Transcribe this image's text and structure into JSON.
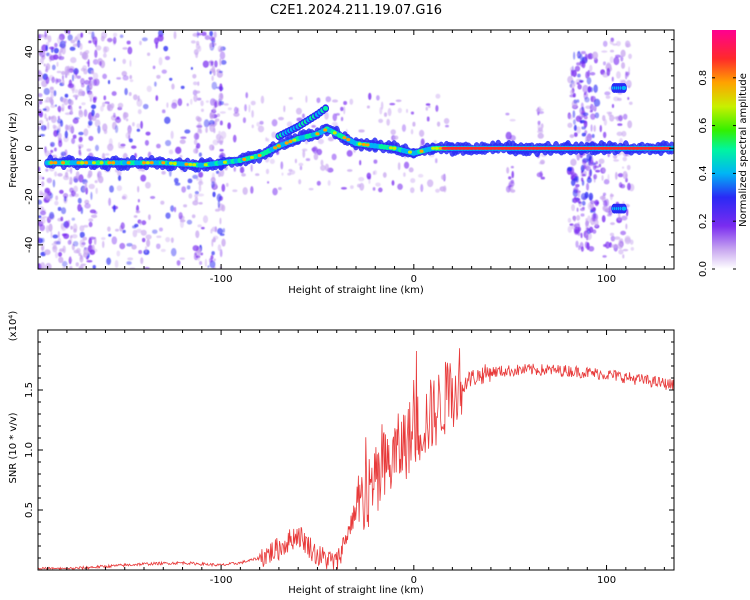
{
  "title": "C2E1.2024.211.19.07.G16",
  "chart_data": [
    {
      "type": "heatmap",
      "xlabel": "Height of straight line (km)",
      "ylabel": "Frequency (Hz)",
      "xlim": [
        -195,
        135
      ],
      "ylim": [
        -50,
        49
      ],
      "x_ticks": [
        -100,
        0,
        100
      ],
      "y_ticks": [
        -40,
        -20,
        0,
        20,
        40
      ],
      "colorbar": {
        "label": "Normalized spectral amplitude",
        "range": [
          0,
          1
        ],
        "ticks": [
          "0.0",
          "0.2",
          "0.4",
          "0.6",
          "0.8"
        ],
        "colors": [
          "#ffffff",
          "#c9a8f0",
          "#7a2cf0",
          "#2a2af5",
          "#00b5f5",
          "#00f5a0",
          "#33f000",
          "#c8f000",
          "#ffa200",
          "#ff2a2a",
          "#ff0090"
        ]
      },
      "series": [
        {
          "points": [
            [
              -190,
              -6
            ],
            [
              -170,
              -6
            ],
            [
              -150,
              -6
            ],
            [
              -130,
              -6
            ],
            [
              -110,
              -7
            ],
            [
              -100,
              -6
            ],
            [
              -90,
              -5
            ],
            [
              -80,
              -3
            ],
            [
              -70,
              1
            ],
            [
              -60,
              4
            ],
            [
              -50,
              6
            ],
            [
              -45,
              8
            ],
            [
              -40,
              6
            ],
            [
              -30,
              2
            ],
            [
              -20,
              1
            ],
            [
              -10,
              0
            ],
            [
              0,
              -2
            ],
            [
              10,
              0
            ],
            [
              20,
              0
            ],
            [
              50,
              0
            ],
            [
              80,
              0
            ],
            [
              96,
              0
            ],
            [
              110,
              0
            ],
            [
              134,
              0
            ]
          ]
        },
        {
          "points": [
            [
              -70,
              5
            ],
            [
              -60,
              9
            ],
            [
              -50,
              14
            ],
            [
              -45,
              17
            ]
          ]
        },
        {
          "points": [
            [
              104,
              25
            ],
            [
              110,
              25
            ]
          ]
        },
        {
          "points": [
            [
              104,
              -25
            ],
            [
              110,
              -25
            ]
          ]
        }
      ]
    },
    {
      "type": "line",
      "xlabel": "Height of straight line (km)",
      "ylabel": "SNR (10 * v/v)",
      "y_multiplier": "(x10⁴)",
      "xlim": [
        -195,
        135
      ],
      "ylim": [
        0,
        2.0
      ],
      "x_ticks": [
        -100,
        0,
        100
      ],
      "y_ticks": [
        "0.5",
        "1.0",
        "1.5"
      ],
      "color": "#e83a3a",
      "x": [
        -195,
        -180,
        -160,
        -140,
        -120,
        -100,
        -90,
        -80,
        -70,
        -60,
        -50,
        -40,
        -30,
        -20,
        -10,
        0,
        10,
        20,
        30,
        40,
        60,
        80,
        100,
        120,
        135
      ],
      "y": [
        0.01,
        0.01,
        0.03,
        0.05,
        0.06,
        0.04,
        0.06,
        0.1,
        0.18,
        0.3,
        0.12,
        0.06,
        0.5,
        0.7,
        0.95,
        1.15,
        1.3,
        1.5,
        1.6,
        1.65,
        1.67,
        1.66,
        1.63,
        1.58,
        1.54
      ]
    }
  ]
}
